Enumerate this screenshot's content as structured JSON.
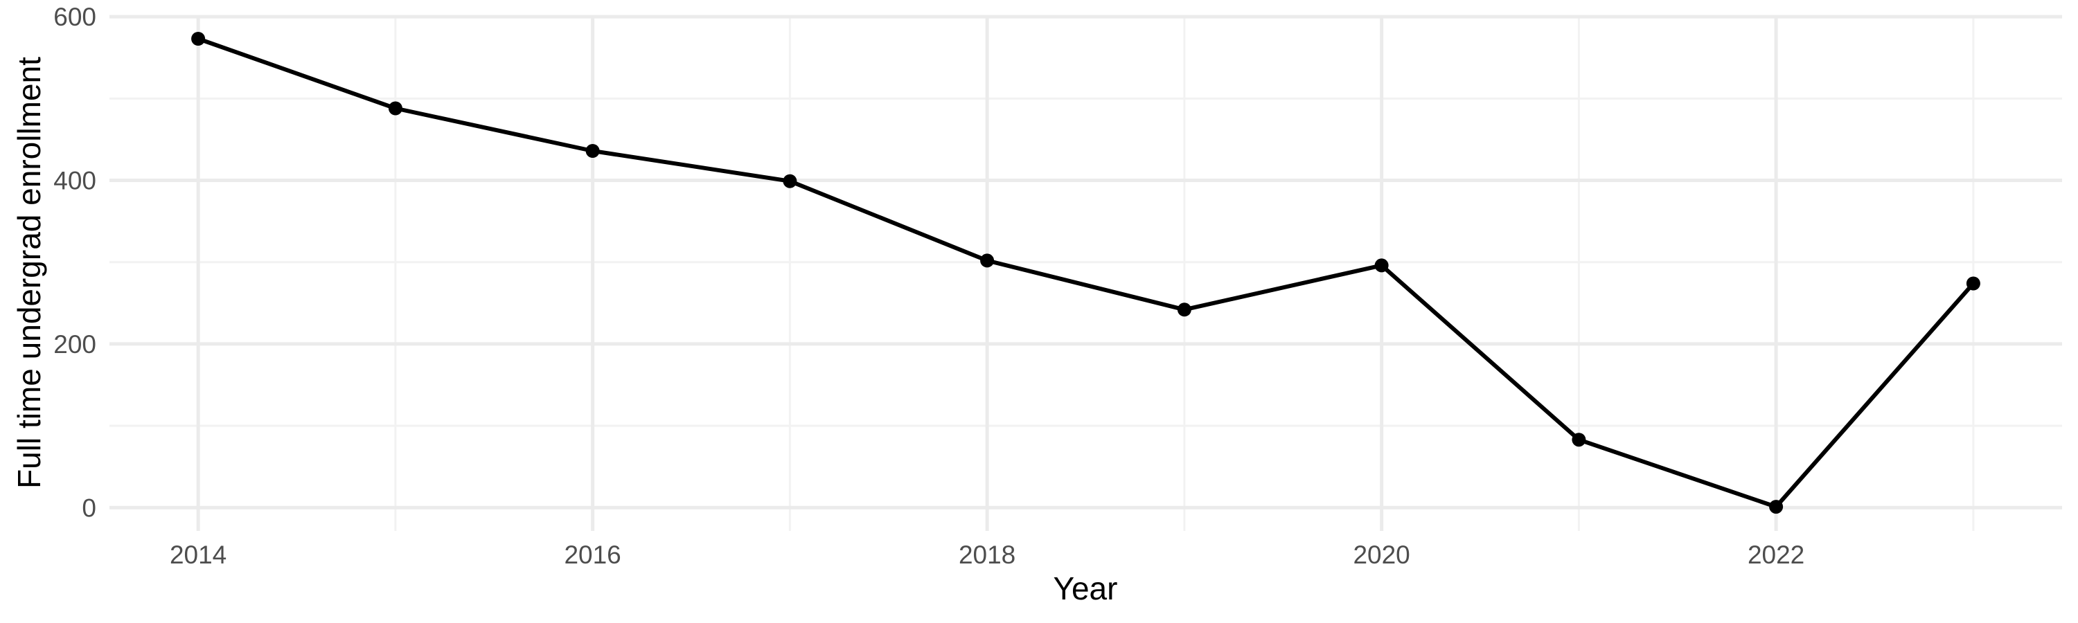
{
  "chart_data": {
    "type": "line",
    "title": "",
    "xlabel": "Year",
    "ylabel": "Full time undergrad enrollment",
    "x": [
      2014,
      2015,
      2016,
      2017,
      2018,
      2019,
      2020,
      2021,
      2022,
      2023
    ],
    "values": [
      573,
      488,
      436,
      399,
      302,
      242,
      296,
      83,
      1,
      274
    ],
    "series": [
      {
        "name": "Full time undergrad enrollment",
        "values": [
          573,
          488,
          436,
          399,
          302,
          242,
          296,
          83,
          1,
          274
        ]
      }
    ],
    "x_major_ticks": [
      2014,
      2016,
      2018,
      2020,
      2022
    ],
    "x_minor_gridlines": [
      2015,
      2017,
      2019,
      2021,
      2023
    ],
    "y_major_ticks": [
      0,
      200,
      400,
      600
    ],
    "y_minor_gridlines": [
      100,
      300,
      500
    ],
    "xlim": [
      2013.55,
      2023.45
    ],
    "ylim": [
      -28.5,
      601.8
    ],
    "grid": "major+minor",
    "legend_position": "none",
    "marker": "filled-circle"
  },
  "styles": {
    "background": "#FFFFFF",
    "line_color": "#000000",
    "point_color": "#000000",
    "grid_major_color": "#EBEBEB",
    "grid_minor_color": "#F2F2F2",
    "tick_label_color": "#4D4D4D",
    "axis_title_color": "#000000"
  }
}
